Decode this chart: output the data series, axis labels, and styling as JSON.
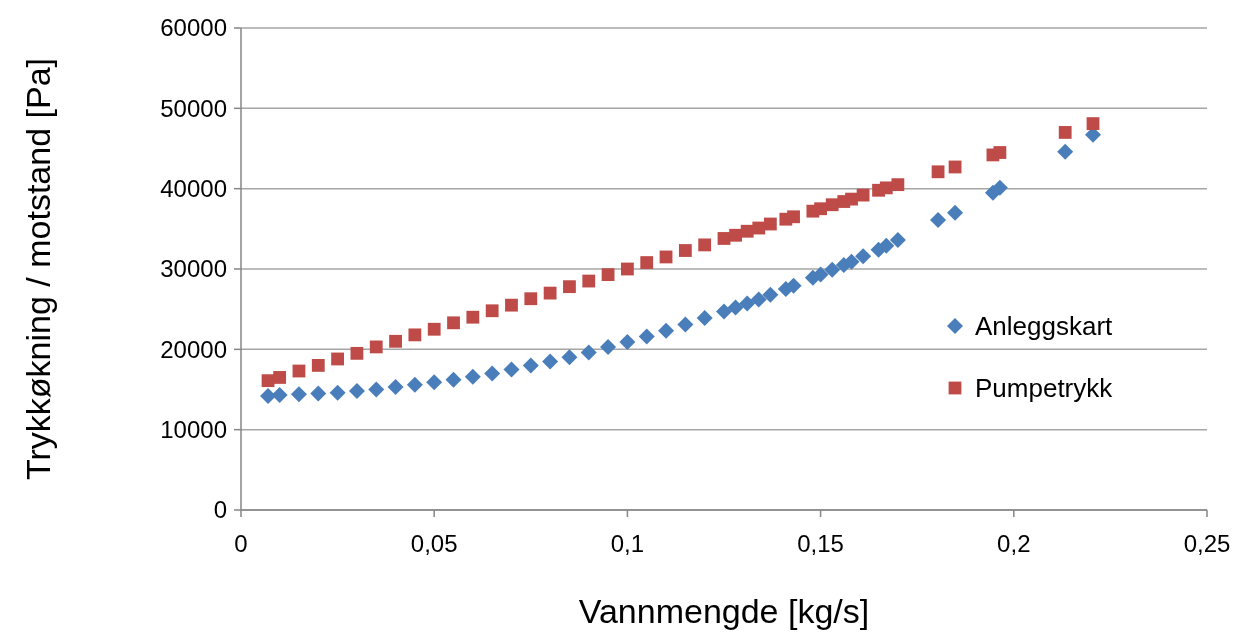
{
  "chart_data": {
    "type": "scatter",
    "xlabel": "Vannmengde [kg/s]",
    "ylabel": "Trykkøkning / motstand [Pa]",
    "x": [
      0.007,
      0.01,
      0.015,
      0.02,
      0.025,
      0.03,
      0.035,
      0.04,
      0.045,
      0.05,
      0.055,
      0.06,
      0.065,
      0.07,
      0.075,
      0.08,
      0.085,
      0.09,
      0.095,
      0.1,
      0.105,
      0.11,
      0.115,
      0.12,
      0.125,
      0.128,
      0.131,
      0.134,
      0.137,
      0.141,
      0.143,
      0.148,
      0.15,
      0.153,
      0.156,
      0.158,
      0.161,
      0.165,
      0.167,
      0.17,
      0.1804,
      0.1848,
      0.1946,
      0.1964,
      0.2133,
      0.2205
    ],
    "series": [
      {
        "name": "Anleggskart",
        "color": "#4a7ebb",
        "marker": "diamond",
        "values": [
          14200,
          14300,
          14400,
          14500,
          14600,
          14800,
          15000,
          15300,
          15600,
          15900,
          16200,
          16600,
          17000,
          17500,
          18000,
          18500,
          19000,
          19600,
          20300,
          20900,
          21600,
          22300,
          23100,
          23900,
          24700,
          25200,
          25700,
          26200,
          26800,
          27500,
          27900,
          28900,
          29300,
          29900,
          30500,
          30900,
          31600,
          32400,
          32900,
          33600,
          36100,
          37000,
          39500,
          40100,
          44600,
          46700
        ]
      },
      {
        "name": "Pumpetrykk",
        "color": "#be4b48",
        "marker": "square",
        "values": [
          16100,
          16500,
          17300,
          18000,
          18800,
          19500,
          20300,
          21000,
          21800,
          22500,
          23300,
          24000,
          24800,
          25500,
          26300,
          27000,
          27800,
          28500,
          29300,
          30000,
          30800,
          31500,
          32300,
          33000,
          33800,
          34200,
          34700,
          35100,
          35600,
          36200,
          36500,
          37200,
          37500,
          38000,
          38400,
          38700,
          39200,
          39800,
          40100,
          40500,
          42100,
          42700,
          44200,
          44500,
          47000,
          48100
        ]
      }
    ],
    "xlim": [
      0,
      0.25
    ],
    "xticks": [
      0,
      {
        "value": 0.05,
        "label": "0,05"
      },
      {
        "value": 0.1,
        "label": "0,1"
      },
      {
        "value": 0.15,
        "label": "0,15"
      },
      {
        "value": 0.2,
        "label": "0,2"
      },
      {
        "value": 0.25,
        "label": "0,25"
      }
    ],
    "ylim": [
      0,
      60000
    ],
    "yticks": [
      0,
      10000,
      20000,
      30000,
      40000,
      50000,
      60000
    ],
    "grid": "y",
    "legend": "right"
  }
}
